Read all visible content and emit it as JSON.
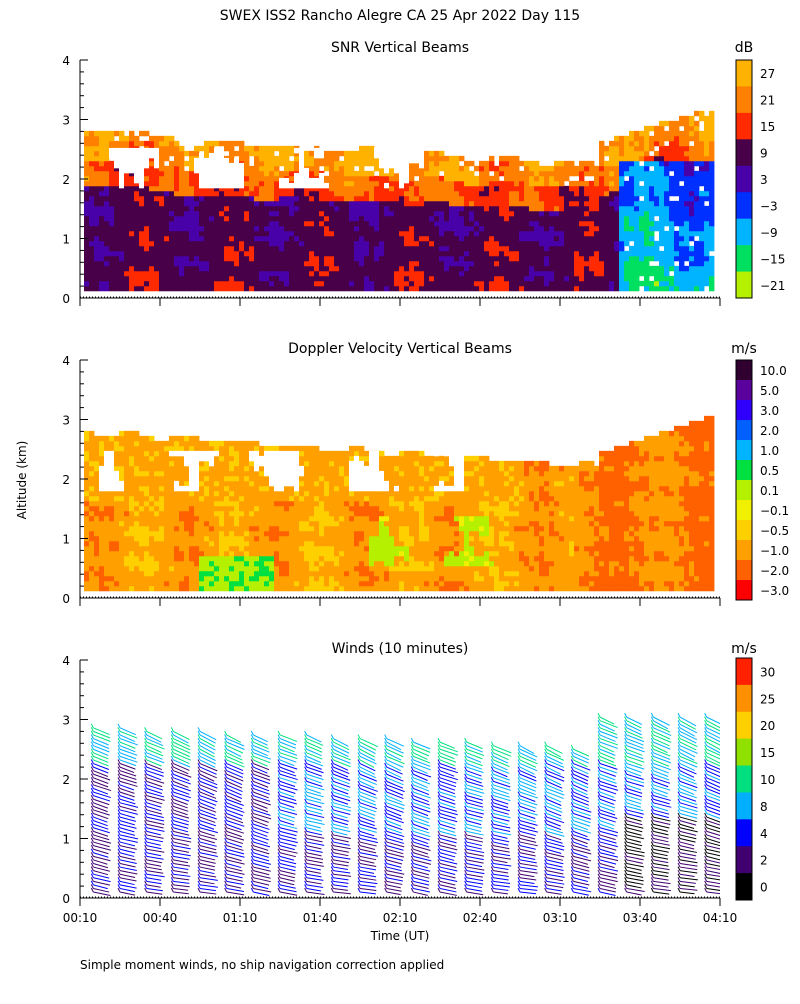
{
  "chart_data": {
    "type": "heatmap",
    "title": "SWEX ISS2 Rancho Alegre CA  25 Apr 2022 Day 115",
    "ylabel": "Altitude (km)",
    "xlabel": "Time (UT)",
    "x_range_minutes": [
      10,
      250
    ],
    "x_ticks": [
      "00:10",
      "00:40",
      "01:10",
      "01:40",
      "02:10",
      "02:40",
      "03:10",
      "03:40",
      "04:10"
    ],
    "y_ticks": [
      "0",
      "1",
      "2",
      "3",
      "4"
    ],
    "ylim": [
      0,
      4
    ],
    "panels": [
      {
        "title": "SNR Vertical Beams",
        "units": "dB",
        "type": "heatmap",
        "colorbar_ticks": [
          "27",
          "21",
          "15",
          "9",
          "3",
          "−3",
          "−9",
          "−15",
          "−21"
        ],
        "colorbar_colors": [
          "#ffb300",
          "#ff8000",
          "#ff2a00",
          "#480048",
          "#4800a8",
          "#0030ff",
          "#00b4ff",
          "#00e060",
          "#b4f000"
        ]
      },
      {
        "title": "Doppler Velocity Vertical Beams",
        "units": "m/s",
        "type": "heatmap",
        "colorbar_ticks": [
          "10.0",
          "5.0",
          "3.0",
          "2.0",
          "1.0",
          "0.5",
          "0.1",
          "−0.1",
          "−0.5",
          "−1.0",
          "−2.0",
          "−3.0"
        ],
        "colorbar_colors": [
          "#300030",
          "#5a009c",
          "#3000ff",
          "#0060ff",
          "#00b4ff",
          "#00e040",
          "#b4f000",
          "#f0f000",
          "#ffd000",
          "#ffa000",
          "#ff6000",
          "#ff0000"
        ]
      },
      {
        "title": "Winds (10 minutes)",
        "units": "m/s",
        "type": "wind barbs",
        "colorbar_ticks": [
          "30",
          "25",
          "20",
          "15",
          "10",
          "8",
          "4",
          "2",
          "0"
        ],
        "colorbar_colors": [
          "#ff2000",
          "#ff9000",
          "#ffd000",
          "#90e000",
          "#00e080",
          "#00b0ff",
          "#0000ff",
          "#400070",
          "#000000"
        ]
      }
    ]
  },
  "footer": {
    "note": "Simple moment winds, no ship navigation correction applied"
  }
}
